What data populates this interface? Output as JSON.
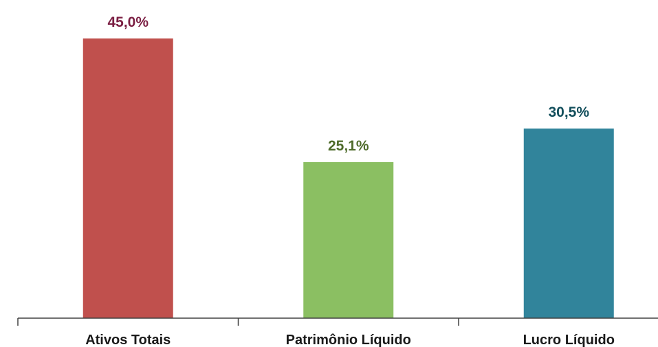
{
  "chart_data": {
    "type": "bar",
    "title": "",
    "xlabel": "",
    "ylabel": "",
    "ylim": [
      0,
      45.0
    ],
    "grid": false,
    "categories": [
      "Ativos Totais",
      "Patrimônio Líquido",
      "Lucro Líquido"
    ],
    "values": [
      45.0,
      25.1,
      30.5
    ],
    "data_labels": [
      "45,0%",
      "25,1%",
      "30,5%"
    ],
    "bar_colors": [
      "#c0504d",
      "#8bbf62",
      "#31849b"
    ],
    "label_colors": [
      "#7b1f43",
      "#4e6b2a",
      "#134f5c"
    ],
    "axis_color": "#404040"
  }
}
